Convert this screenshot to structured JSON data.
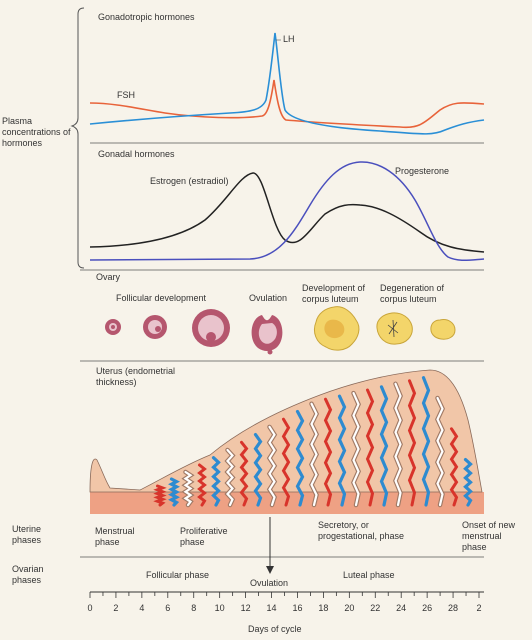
{
  "hormones": {
    "side_label": "Plasma concentrations of hormones",
    "gonadotropic_title": "Gonadotropic hormones",
    "gonadal_title": "Gonadal hormones",
    "lh_label": "LH",
    "fsh_label": "FSH",
    "estrogen_label": "Estrogen (estradiol)",
    "progesterone_label": "Progesterone",
    "colors": {
      "lh": "#2a8fd6",
      "fsh": "#e8633a",
      "estrogen": "#222222",
      "progesterone": "#4a4fbd"
    }
  },
  "ovary": {
    "title": "Ovary",
    "follicular_label": "Follicular development",
    "ovulation_label": "Ovulation",
    "corpus_dev_label": "Development of corpus luteum",
    "corpus_deg_label": "Degeneration of corpus luteum",
    "colors": {
      "follicle": "#b5566e",
      "follicle_light": "#e9c3cc",
      "luteum": "#f3d56a",
      "luteum_edge": "#c9a53a"
    }
  },
  "uterus": {
    "title": "Uterus (endometrial thickness)",
    "colors": {
      "tissue": "#f1c6a8",
      "base": "#eea184",
      "artery": "#d8342b",
      "vein": "#2e8bd0",
      "gland": "#ffffff"
    }
  },
  "phases": {
    "uterine_label": "Uterine phases",
    "ovarian_label": "Ovarian phases",
    "menstrual": "Menstrual phase",
    "proliferative": "Proliferative phase",
    "secretory": "Secretory, or progestational, phase",
    "onset": "Onset of new menstrual phase",
    "follicular": "Follicular phase",
    "ovulation": "Ovulation",
    "luteal": "Luteal phase"
  },
  "axis": {
    "title": "Days of cycle",
    "ticks": [
      "0",
      "2",
      "4",
      "6",
      "8",
      "10",
      "12",
      "14",
      "16",
      "18",
      "20",
      "22",
      "24",
      "26",
      "28",
      "2"
    ]
  }
}
